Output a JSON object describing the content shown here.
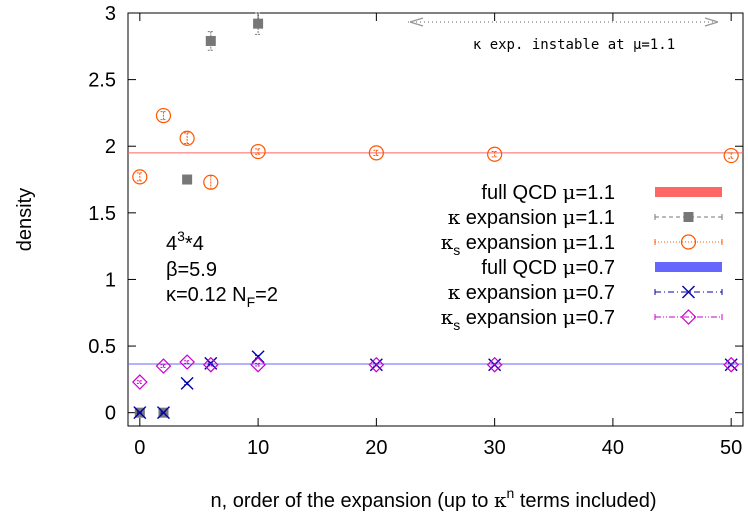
{
  "chart_data": {
    "type": "scatter",
    "xlabel_parts": [
      "n, order of the expansion (up to ",
      "κ",
      "n",
      " terms included)"
    ],
    "ylabel": "density",
    "xlim": [
      -1,
      51
    ],
    "ylim": [
      -0.1,
      3
    ],
    "xticks": [
      0,
      10,
      20,
      30,
      40,
      50
    ],
    "yticks": [
      0,
      0.5,
      1,
      1.5,
      2,
      2.5,
      3
    ],
    "ytick_labels": [
      "0",
      "0.5",
      "1",
      "1.5",
      "2",
      "2.5",
      "3"
    ],
    "grid": false,
    "legend_position": "right",
    "annotation": "κ exp. instable at μ=1.1",
    "params": {
      "lattice": [
        "4",
        "3",
        "*4"
      ],
      "beta": "β=5.9",
      "kappa": [
        "κ=0.12 N",
        "F",
        "=2"
      ]
    },
    "series": [
      {
        "name": "full QCD μ=1.1",
        "legend_parts": [
          "full QCD ",
          "μ",
          "=1.1"
        ],
        "kind": "hline",
        "color": "#ff6666",
        "y": 1.95
      },
      {
        "name": "κ expansion μ=1.1",
        "legend_parts": [
          "κ",
          "",
          " expansion ",
          "μ",
          "=1.1"
        ],
        "kind": "points",
        "marker": "square",
        "color": "#777777",
        "line": "dashed",
        "x": [
          0,
          2,
          4,
          6,
          10
        ],
        "y": [
          0,
          0,
          1.75,
          2.79,
          2.92
        ],
        "err": [
          0.01,
          0.01,
          0.02,
          0.07,
          0.08
        ]
      },
      {
        "name": "κs expansion μ=1.1",
        "legend_parts": [
          "κ",
          "s",
          " expansion ",
          "μ",
          "=1.1"
        ],
        "kind": "points",
        "marker": "circle",
        "color": "#ff5500",
        "line": "dotted",
        "x": [
          0,
          2,
          4,
          6,
          10,
          20,
          30,
          50
        ],
        "y": [
          1.77,
          2.23,
          2.06,
          1.73,
          1.96,
          1.95,
          1.94,
          1.93
        ],
        "err": [
          0.03,
          0.03,
          0.04,
          0.05,
          0.02,
          0.02,
          0.02,
          0.02
        ]
      },
      {
        "name": "full QCD μ=0.7",
        "legend_parts": [
          "full QCD ",
          "μ",
          "=0.7"
        ],
        "kind": "hline",
        "color": "#6666ff",
        "y": 0.365
      },
      {
        "name": "κ expansion μ=0.7",
        "legend_parts": [
          "κ",
          "",
          " expansion ",
          "μ",
          "=0.7"
        ],
        "kind": "points",
        "marker": "cross",
        "color": "#0000aa",
        "line": "dashdot",
        "x": [
          0,
          2,
          4,
          6,
          10,
          20,
          30,
          50
        ],
        "y": [
          0,
          0,
          0.22,
          0.37,
          0.42,
          0.36,
          0.36,
          0.36
        ],
        "err": [
          0.005,
          0.005,
          0.01,
          0.01,
          0.01,
          0.01,
          0.01,
          0.01
        ]
      },
      {
        "name": "κs expansion μ=0.7",
        "legend_parts": [
          "κ",
          "s",
          " expansion ",
          "μ",
          "=0.7"
        ],
        "kind": "points",
        "marker": "diamond",
        "color": "#cc00cc",
        "line": "dashdotdot",
        "x": [
          0,
          2,
          4,
          6,
          10,
          20,
          30,
          50
        ],
        "y": [
          0.23,
          0.35,
          0.38,
          0.36,
          0.36,
          0.36,
          0.36,
          0.36
        ],
        "err": [
          0.01,
          0.01,
          0.01,
          0.01,
          0.01,
          0.01,
          0.01,
          0.01
        ]
      }
    ]
  }
}
